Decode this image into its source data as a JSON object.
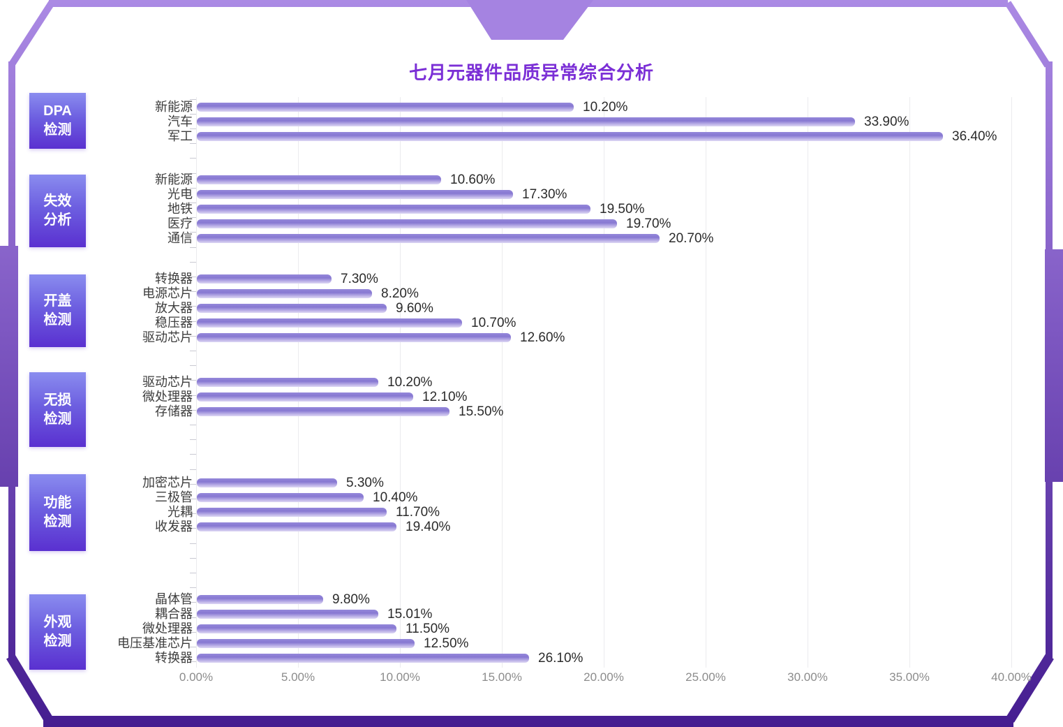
{
  "title": "七月元器件品质异常综合分析",
  "colors": {
    "title": "#7b2fd6",
    "frame_light": "#ab8ae4",
    "frame_mid": "#7e58c2",
    "frame_dark": "#451d90",
    "group_box_top": "#8a8cef",
    "group_box_bottom": "#5a30d0",
    "bar_top": "#9487da",
    "bar_bottom": "#ddd7f4",
    "axis_text": "#8c8c8c",
    "category_text": "#3d3d3d",
    "value_text": "#2b2b2b"
  },
  "chart_data": {
    "type": "bar",
    "orientation": "horizontal",
    "title": "七月元器件品质异常综合分析",
    "xlabel": "",
    "ylabel": "",
    "xlim": [
      0,
      40
    ],
    "x_tick_labels": [
      "0.00%",
      "5.00%",
      "10.00%",
      "15.00%",
      "20.00%",
      "25.00%",
      "30.00%",
      "35.00%",
      "40.00%"
    ],
    "grid": true,
    "legend": false,
    "groups": [
      {
        "label": "DPA检测",
        "label_lines": [
          "DPA",
          "检测"
        ],
        "rows": [
          {
            "category": "新能源",
            "value": 10.2,
            "value_label": "10.20%",
            "bar_visual_pct": 18.5
          },
          {
            "category": "汽车",
            "value": 33.9,
            "value_label": "33.90%",
            "bar_visual_pct": 32.3
          },
          {
            "category": "军工",
            "value": 36.4,
            "value_label": "36.40%",
            "bar_visual_pct": 36.6
          }
        ]
      },
      {
        "label": "失效分析",
        "label_lines": [
          "失效",
          "分析"
        ],
        "rows": [
          {
            "category": "新能源",
            "value": 10.6,
            "value_label": "10.60%",
            "bar_visual_pct": 12.0
          },
          {
            "category": "光电",
            "value": 17.3,
            "value_label": "17.30%",
            "bar_visual_pct": 15.5
          },
          {
            "category": "地铁",
            "value": 19.5,
            "value_label": "19.50%",
            "bar_visual_pct": 19.3
          },
          {
            "category": "医疗",
            "value": 19.7,
            "value_label": "19.70%",
            "bar_visual_pct": 20.6
          },
          {
            "category": "通信",
            "value": 20.7,
            "value_label": "20.70%",
            "bar_visual_pct": 22.7
          }
        ]
      },
      {
        "label": "开盖检测",
        "label_lines": [
          "开盖",
          "检测"
        ],
        "rows": [
          {
            "category": "转换器",
            "value": 7.3,
            "value_label": "7.30%",
            "bar_visual_pct": 6.6
          },
          {
            "category": "电源芯片",
            "value": 8.2,
            "value_label": "8.20%",
            "bar_visual_pct": 8.6
          },
          {
            "category": "放大器",
            "value": 9.6,
            "value_label": "9.60%",
            "bar_visual_pct": 9.3
          },
          {
            "category": "稳压器",
            "value": 10.7,
            "value_label": "10.70%",
            "bar_visual_pct": 13.0
          },
          {
            "category": "驱动芯片",
            "value": 12.6,
            "value_label": "12.60%",
            "bar_visual_pct": 15.4
          }
        ]
      },
      {
        "label": "无损检测",
        "label_lines": [
          "无损",
          "检测"
        ],
        "rows": [
          {
            "category": "驱动芯片",
            "value": 10.2,
            "value_label": "10.20%",
            "bar_visual_pct": 8.9
          },
          {
            "category": "微处理器",
            "value": 12.1,
            "value_label": "12.10%",
            "bar_visual_pct": 10.6
          },
          {
            "category": "存储器",
            "value": 15.5,
            "value_label": "15.50%",
            "bar_visual_pct": 12.4
          }
        ]
      },
      {
        "label": "功能检测",
        "label_lines": [
          "功能",
          "检测"
        ],
        "rows": [
          {
            "category": "加密芯片",
            "value": 5.3,
            "value_label": "5.30%",
            "bar_visual_pct": 6.9
          },
          {
            "category": "三极管",
            "value": 10.4,
            "value_label": "10.40%",
            "bar_visual_pct": 8.2
          },
          {
            "category": "光耦",
            "value": 11.7,
            "value_label": "11.70%",
            "bar_visual_pct": 9.3
          },
          {
            "category": "收发器",
            "value": 19.4,
            "value_label": "19.40%",
            "bar_visual_pct": 9.8
          }
        ]
      },
      {
        "label": "外观检测",
        "label_lines": [
          "外观",
          "检测"
        ],
        "rows": [
          {
            "category": "晶体管",
            "value": 9.8,
            "value_label": "9.80%",
            "bar_visual_pct": 6.2
          },
          {
            "category": "耦合器",
            "value": 15.01,
            "value_label": "15.01%",
            "bar_visual_pct": 8.9
          },
          {
            "category": "微处理器",
            "value": 11.5,
            "value_label": "11.50%",
            "bar_visual_pct": 9.8
          },
          {
            "category": "电压基准芯片",
            "value": 12.5,
            "value_label": "12.50%",
            "bar_visual_pct": 10.7
          },
          {
            "category": "转换器",
            "value": 26.1,
            "value_label": "26.10%",
            "bar_visual_pct": 16.3
          }
        ]
      }
    ]
  }
}
